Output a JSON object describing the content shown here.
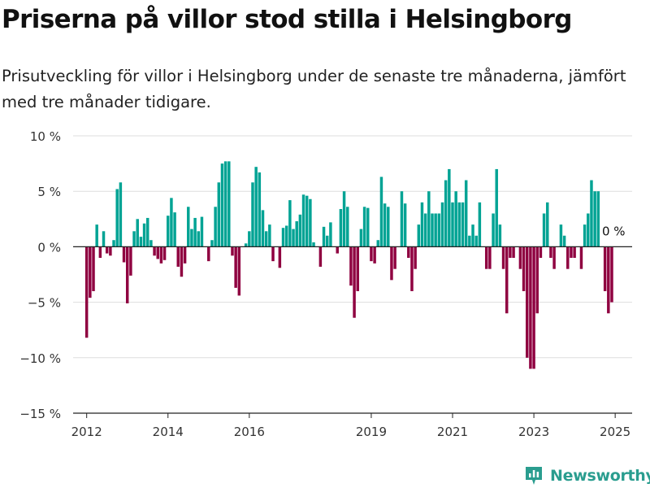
{
  "title": "Priserna på villor stod stilla i Helsingborg",
  "subtitle": "Prisutveckling för villor i Helsingborg under de senaste tre månaderna, jämfört med tre månader tidigare.",
  "logo": {
    "text": "Newsworthy",
    "icon": "bar-chart-logo-icon"
  },
  "colors": {
    "positive": "#00a394",
    "negative": "#8f0040",
    "grid": "#dddddd",
    "axis": "#222222"
  },
  "chart_data": {
    "type": "bar",
    "title": "Priserna på villor stod stilla i Helsingborg",
    "subtitle": "Prisutveckling för villor i Helsingborg under de senaste tre månaderna, jämfört med tre månader tidigare.",
    "xlabel": "",
    "ylabel": "",
    "ylim": [
      -15,
      10
    ],
    "xlim": [
      "2011-09",
      "2025-06"
    ],
    "yticks": [
      10,
      5,
      0,
      -5,
      -10,
      -15
    ],
    "ytick_labels": [
      "10 %",
      "5 %",
      "0 %",
      "−5 %",
      "−10 %",
      "−15 %"
    ],
    "xticks": [
      "2012",
      "2014",
      "2016",
      "2019",
      "2021",
      "2023",
      "2025"
    ],
    "grid": true,
    "annotation": {
      "text": "0 %",
      "x": "2024-12",
      "y": 0
    },
    "x": [
      "2012-01",
      "2012-02",
      "2012-03",
      "2012-04",
      "2012-05",
      "2012-06",
      "2012-07",
      "2012-08",
      "2012-09",
      "2012-10",
      "2012-11",
      "2012-12",
      "2013-01",
      "2013-02",
      "2013-03",
      "2013-04",
      "2013-05",
      "2013-06",
      "2013-07",
      "2013-08",
      "2013-09",
      "2013-10",
      "2013-11",
      "2013-12",
      "2014-01",
      "2014-02",
      "2014-03",
      "2014-04",
      "2014-05",
      "2014-06",
      "2014-07",
      "2014-08",
      "2014-09",
      "2014-10",
      "2014-11",
      "2014-12",
      "2015-01",
      "2015-02",
      "2015-03",
      "2015-04",
      "2015-05",
      "2015-06",
      "2015-07",
      "2015-08",
      "2015-09",
      "2015-10",
      "2015-11",
      "2015-12",
      "2016-01",
      "2016-02",
      "2016-03",
      "2016-04",
      "2016-05",
      "2016-06",
      "2016-07",
      "2016-08",
      "2016-09",
      "2016-10",
      "2016-11",
      "2016-12",
      "2017-01",
      "2017-02",
      "2017-03",
      "2017-04",
      "2017-05",
      "2017-06",
      "2017-07",
      "2017-08",
      "2017-09",
      "2017-10",
      "2017-11",
      "2017-12",
      "2018-01",
      "2018-02",
      "2018-03",
      "2018-04",
      "2018-05",
      "2018-06",
      "2018-07",
      "2018-08",
      "2018-09",
      "2018-10",
      "2018-11",
      "2018-12",
      "2019-01",
      "2019-02",
      "2019-03",
      "2019-04",
      "2019-05",
      "2019-06",
      "2019-07",
      "2019-08",
      "2019-09",
      "2019-10",
      "2019-11",
      "2019-12",
      "2020-01",
      "2020-02",
      "2020-03",
      "2020-04",
      "2020-05",
      "2020-06",
      "2020-07",
      "2020-08",
      "2020-09",
      "2020-10",
      "2020-11",
      "2020-12",
      "2021-01",
      "2021-02",
      "2021-03",
      "2021-04",
      "2021-05",
      "2021-06",
      "2021-07",
      "2021-08",
      "2021-09",
      "2021-10",
      "2021-11",
      "2021-12",
      "2022-01",
      "2022-02",
      "2022-03",
      "2022-04",
      "2022-05",
      "2022-06",
      "2022-07",
      "2022-08",
      "2022-09",
      "2022-10",
      "2022-11",
      "2022-12",
      "2023-01",
      "2023-02",
      "2023-03",
      "2023-04",
      "2023-05",
      "2023-06",
      "2023-07",
      "2023-08",
      "2023-09",
      "2023-10",
      "2023-11",
      "2023-12",
      "2024-01",
      "2024-02",
      "2024-03",
      "2024-04",
      "2024-05",
      "2024-06",
      "2024-07",
      "2024-08",
      "2024-09",
      "2024-10",
      "2024-11",
      "2024-12",
      "2025-01",
      "2025-02"
    ],
    "values": [
      -8.2,
      -4.6,
      -4.0,
      2.0,
      -1.0,
      1.4,
      -0.6,
      -0.8,
      0.6,
      5.2,
      5.8,
      -1.4,
      -5.1,
      -2.6,
      1.4,
      2.5,
      0.9,
      2.1,
      2.6,
      0.6,
      -0.8,
      -1.1,
      -1.5,
      -1.2,
      2.8,
      4.4,
      3.1,
      -1.8,
      -2.7,
      -1.5,
      3.6,
      1.6,
      2.6,
      1.4,
      2.7,
      0,
      -1.3,
      0.6,
      3.6,
      5.8,
      7.5,
      7.7,
      7.7,
      -0.8,
      -3.7,
      -4.4,
      0,
      0.3,
      1.4,
      5.8,
      7.2,
      6.7,
      3.3,
      1.4,
      2.0,
      -1.3,
      0,
      -1.9,
      1.7,
      1.9,
      4.2,
      1.6,
      2.3,
      2.9,
      4.7,
      4.6,
      4.3,
      0.4,
      0,
      -1.8,
      1.8,
      1.0,
      2.2,
      0,
      -0.6,
      3.4,
      5.0,
      3.6,
      -3.5,
      -6.4,
      -4.0,
      1.6,
      3.6,
      3.5,
      -1.3,
      -1.5,
      0.6,
      6.3,
      3.9,
      3.6,
      -3.0,
      -2.0,
      0,
      5.0,
      3.9,
      -1.0,
      -4.0,
      -2.0,
      2.0,
      4.0,
      3.0,
      5.0,
      3.0,
      3.0,
      3.0,
      4.0,
      6.0,
      7.0,
      4.0,
      5.0,
      4.0,
      4.0,
      6.0,
      1.0,
      2.0,
      1.0,
      4.0,
      0,
      -2.0,
      -2.0,
      3.0,
      7.0,
      2.0,
      -2.0,
      -6.0,
      -1.0,
      -1.0,
      0,
      -2.0,
      -4.0,
      -10.0,
      -11.0,
      -11.0,
      -6.0,
      -1.0,
      3.0,
      4.0,
      -1.0,
      -2.0,
      0,
      2.0,
      1.0,
      -2.0,
      -1.0,
      -1.0,
      0,
      -2.0,
      2.0,
      3.0,
      6.0,
      5.0,
      5.0,
      0,
      -4.0,
      -6.0,
      -5.0,
      0,
      0
    ]
  }
}
